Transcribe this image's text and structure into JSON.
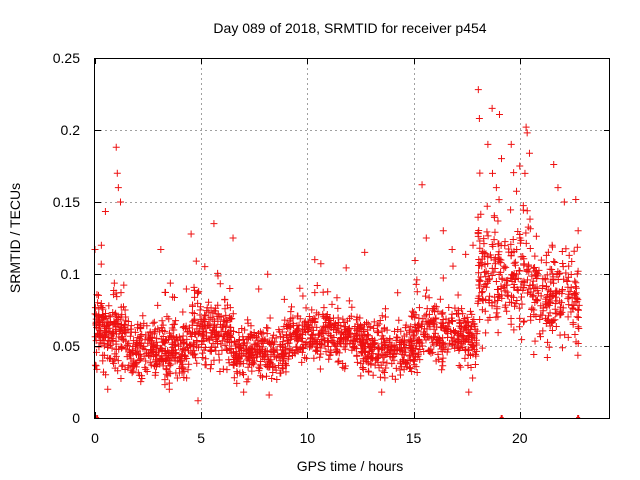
{
  "chart_data": {
    "type": "scatter",
    "title": "Day 089 of 2018, SRMTID for receiver p454",
    "xlabel": "GPS time / hours",
    "ylabel": "SRMTID / TECUs",
    "xlim": [
      0,
      24.25
    ],
    "ylim": [
      0,
      0.25
    ],
    "xticks": [
      "0",
      "5",
      "10",
      "15",
      "20"
    ],
    "xtick_values": [
      0,
      5,
      10,
      15,
      20
    ],
    "yticks": [
      "0",
      "0.05",
      "0.1",
      "0.15",
      "0.2",
      "0.25"
    ],
    "ytick_values": [
      0,
      0.05,
      0.1,
      0.15,
      0.2,
      0.25
    ],
    "grid": true,
    "marker": "plus",
    "series_color": "#ee1111",
    "zero_markers_x": [
      0.1,
      19.15,
      22.75
    ],
    "anchor_points": [
      [
        0.0,
        0.117
      ],
      [
        0.3,
        0.12
      ],
      [
        0.5,
        0.03
      ],
      [
        0.6,
        0.02
      ],
      [
        1.0,
        0.188
      ],
      [
        1.05,
        0.17
      ],
      [
        1.1,
        0.16
      ],
      [
        1.2,
        0.15
      ],
      [
        3.1,
        0.117
      ],
      [
        3.5,
        0.02
      ],
      [
        4.85,
        0.012
      ],
      [
        5.6,
        0.135
      ],
      [
        6.5,
        0.125
      ],
      [
        7.0,
        0.018
      ],
      [
        8.2,
        0.016
      ],
      [
        10.35,
        0.11
      ],
      [
        12.7,
        0.115
      ],
      [
        13.5,
        0.018
      ],
      [
        15.4,
        0.162
      ],
      [
        15.6,
        0.125
      ],
      [
        16.4,
        0.13
      ],
      [
        17.6,
        0.018
      ],
      [
        17.8,
        0.12
      ],
      [
        18.05,
        0.228
      ],
      [
        18.1,
        0.208
      ],
      [
        18.5,
        0.19
      ],
      [
        18.7,
        0.215
      ],
      [
        18.9,
        0.16
      ],
      [
        19.6,
        0.19
      ],
      [
        20.0,
        0.175
      ],
      [
        20.3,
        0.202
      ],
      [
        20.35,
        0.198
      ],
      [
        21.3,
        0.042
      ],
      [
        21.6,
        0.176
      ],
      [
        21.8,
        0.16
      ],
      [
        22.1,
        0.15
      ],
      [
        22.75,
        0.13
      ]
    ],
    "segments": [
      {
        "x_start": 0.0,
        "x_end": 1.5,
        "mean": 0.062,
        "spread": 0.022,
        "count": 180
      },
      {
        "x_start": 1.5,
        "x_end": 4.5,
        "mean": 0.047,
        "spread": 0.016,
        "count": 300
      },
      {
        "x_start": 4.5,
        "x_end": 6.5,
        "mean": 0.06,
        "spread": 0.02,
        "count": 200
      },
      {
        "x_start": 6.5,
        "x_end": 9.0,
        "mean": 0.046,
        "spread": 0.015,
        "count": 250
      },
      {
        "x_start": 9.0,
        "x_end": 12.5,
        "mean": 0.057,
        "spread": 0.017,
        "count": 320
      },
      {
        "x_start": 12.5,
        "x_end": 15.0,
        "mean": 0.048,
        "spread": 0.016,
        "count": 240
      },
      {
        "x_start": 15.0,
        "x_end": 18.0,
        "mean": 0.058,
        "spread": 0.019,
        "count": 280
      },
      {
        "x_start": 18.0,
        "x_end": 20.5,
        "mean": 0.1,
        "spread": 0.033,
        "count": 230
      },
      {
        "x_start": 20.5,
        "x_end": 22.8,
        "mean": 0.085,
        "spread": 0.028,
        "count": 200
      }
    ]
  }
}
